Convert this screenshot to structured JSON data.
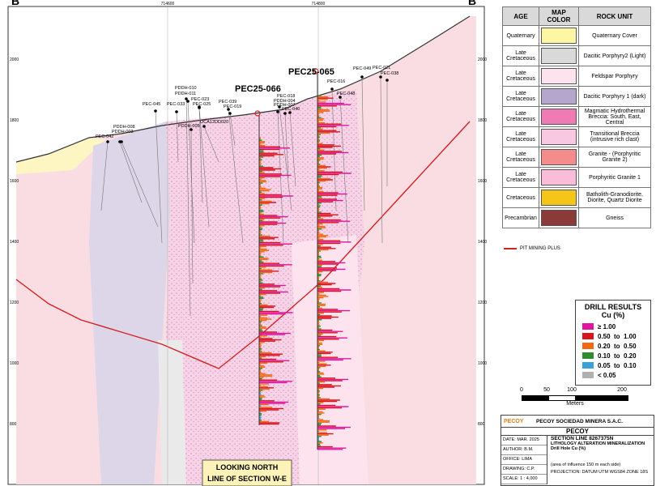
{
  "section": {
    "left_label": "B",
    "right_label": "B'",
    "eastings": [
      "714600",
      "714800"
    ],
    "elevations": [
      "2000",
      "1800",
      "1600",
      "1400",
      "1200",
      "1000",
      "800"
    ]
  },
  "drill_holes": [
    "PEC-042",
    "PDDH-008",
    "PDDH-003",
    "PEC-045",
    "PDDH-010",
    "PDDH-011",
    "PEC-023",
    "PEC-033",
    "PEC-025",
    "PEC-039",
    "PEC-019",
    "PDDH-005",
    "OCA12DD020",
    "PEC-018",
    "PDDH-004",
    "PDDH-007",
    "PEC-040",
    "PEC-049",
    "PEC-021",
    "PEC-038",
    "PEC-016",
    "PEC-048"
  ],
  "highlight_holes": [
    "PEC25-066",
    "PEC25-065"
  ],
  "legend": {
    "headers": [
      "AGE",
      "MAP COLOR",
      "ROCK UNIT"
    ],
    "rows": [
      {
        "age": "Quaternary",
        "color": "#fdf6a3",
        "rock_unit": "Quaternary Cover"
      },
      {
        "age": "Late Cretaceous",
        "color": "#d9d9d9",
        "rock_unit": "Dacitic Porphyry2 (Light)"
      },
      {
        "age": "Late Cretaceous",
        "color": "#fde3ee",
        "rock_unit": "Feldspar Porphyry"
      },
      {
        "age": "Late Cretaceous",
        "color": "#b4a6cc",
        "rock_unit": "Dacitic Porphyry 1 (dark)"
      },
      {
        "age": "Late Cretaceous",
        "color": "#f07ab4",
        "rock_unit": "Magmatic Hydrothermal Breccia: South, East, Central"
      },
      {
        "age": "Late Cretaceous",
        "color": "#f8c8e2",
        "rock_unit": "Transitional Breccia (intrusive rich clast)"
      },
      {
        "age": "Late Cretaceous",
        "color": "#f58c8c",
        "rock_unit": "Granite - (Porphyritic Granite 2)"
      },
      {
        "age": "Late Cretaceous",
        "color": "#f9bcd9",
        "rock_unit": "Porphyritic Granite 1"
      },
      {
        "age": "Cretaceous",
        "color": "#f5c518",
        "rock_unit": "Batholith-Granodiorite, Diorite, Quartz Diorite"
      },
      {
        "age": "Precambrian",
        "color": "#8b3a3a",
        "rock_unit": "Gneiss"
      }
    ]
  },
  "pit_line_label": "PIT MINING PLUS",
  "drill_results": {
    "title": "DRILL RESULTS",
    "unit": "Cu (%)",
    "classes": [
      {
        "label": "≥ 1.00",
        "color": "#e0149e"
      },
      {
        "label": "0.50  to  1.00",
        "color": "#d8141e"
      },
      {
        "label": "0.20  to  0.50",
        "color": "#f06a14"
      },
      {
        "label": "0.10  to  0.20",
        "color": "#2e8b2e"
      },
      {
        "label": "0.05  to  0.10",
        "color": "#3aa0d8"
      },
      {
        "label": "< 0.05",
        "color": "#b0b0b0"
      }
    ]
  },
  "scale_bar": {
    "ticks": [
      "0",
      "50",
      "100",
      "200"
    ],
    "unit": "Meters"
  },
  "view_label": [
    "LOOKING NORTH",
    "LINE OF SECTION W-E"
  ],
  "title_block": {
    "company": "PECOY SOCIEDAD MINERA S.A.C.",
    "project": "PECOY",
    "section": "SECTION LINE 8267375N",
    "subtitle": "LITHOLOGY ALTERATION MINERALIZATION",
    "subtitle2": "Drill Hole Cu (%)",
    "note": "(area of influence 150 m each side)",
    "fields": [
      "DATE: MAR. 2025",
      "AUTHOR: B.M.",
      "OFFICE: LIMA",
      "DRAWING: C.P.",
      "SCALE: 1 : 4,000"
    ],
    "projection": "PROJECTION: DATUM UTM WGS84 ZONE 18S"
  }
}
